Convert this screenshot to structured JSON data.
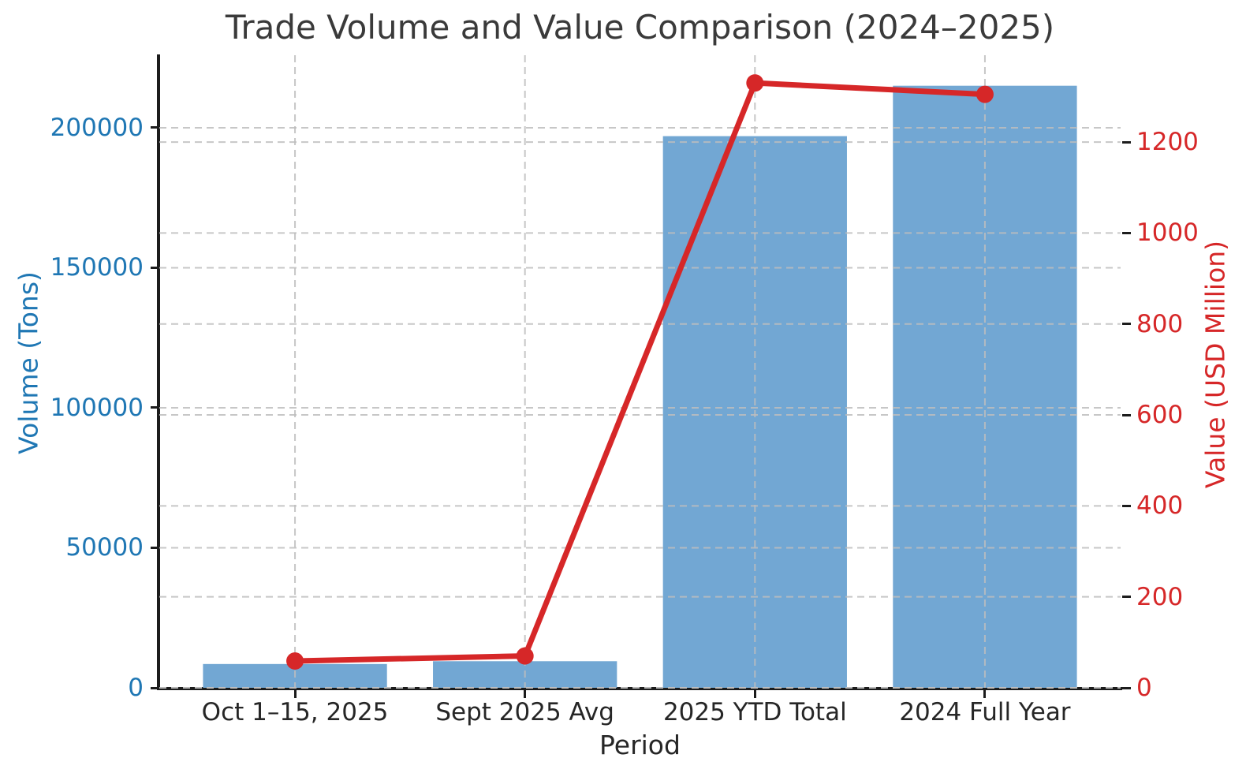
{
  "chart_data": {
    "type": "combo: bar (left axis) + line with markers (right axis)",
    "title": "Trade Volume and Value Comparison (2024–2025)",
    "xlabel": "Period",
    "categories": [
      "Oct 1–15, 2025",
      "Sept 2025 Avg",
      "2025 YTD Total",
      "2024 Full Year"
    ],
    "series": [
      {
        "name": "Volume (Tons)",
        "type": "bar",
        "axis": "left",
        "color": "#72a7d3",
        "values": [
          8500,
          9500,
          197000,
          215000
        ]
      },
      {
        "name": "Value (USD Million)",
        "type": "line",
        "axis": "right",
        "color": "#d62728",
        "values": [
          59,
          70,
          1330,
          1305
        ]
      }
    ],
    "left_axis": {
      "label": "Volume (Tons)",
      "color": "#1f77b4",
      "ticks": [
        0,
        50000,
        100000,
        150000,
        200000
      ],
      "tick_labels": [
        "0",
        "50000",
        "100000",
        "150000",
        "200000"
      ],
      "range": [
        0,
        225900
      ]
    },
    "right_axis": {
      "label": "Value (USD Million)",
      "color": "#d62728",
      "ticks": [
        0,
        200,
        400,
        600,
        800,
        1000,
        1200
      ],
      "tick_labels": [
        "0",
        "200",
        "400",
        "600",
        "800",
        "1000",
        "1200"
      ],
      "range": [
        0,
        1391
      ]
    },
    "grid": {
      "visible": true,
      "style": "dashed",
      "color": "#bdbdbd",
      "horizontal": "both axes tick positions",
      "vertical": "at each category center"
    },
    "legend_position": "none",
    "background_color": "#ffffff",
    "spine_color": "#1c1c1c",
    "title_color": "#3a3a3a"
  }
}
